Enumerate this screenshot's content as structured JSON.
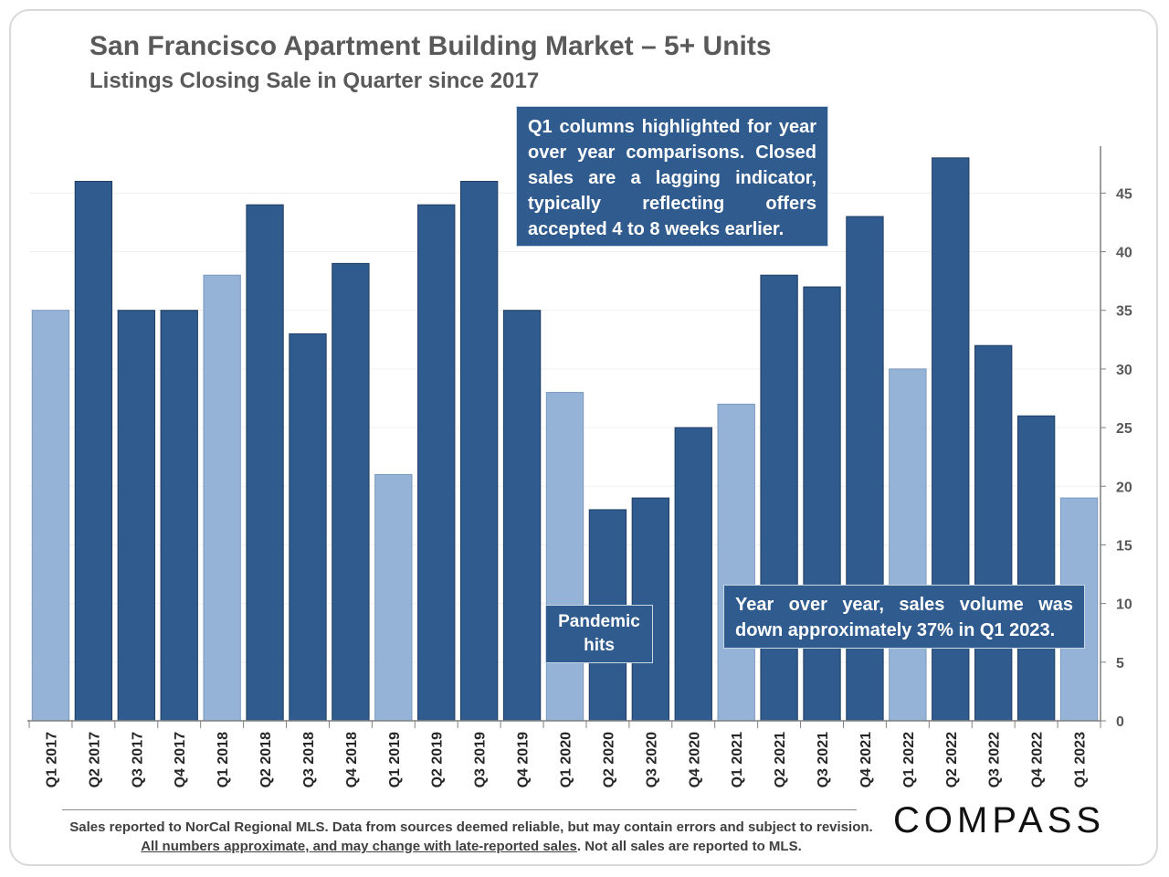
{
  "title": "San Francisco Apartment Building Market – 5+ Units",
  "subtitle": "Listings Closing Sale in Quarter since 2017",
  "callouts": {
    "q1_note": "Q1 columns highlighted for year over year comparisons. Closed sales are a lagging indicator, typically reflecting offers accepted 4 to 8 weeks earlier.",
    "yoy_note": "Year over year, sales volume was down approximately 37% in Q1 2023.",
    "pandemic_note": "Pandemic hits"
  },
  "footnote": {
    "part1": "Sales reported to NorCal Regional MLS. Data from sources deemed reliable, but may contain errors and subject to revision. ",
    "part2_underlined": "All numbers approximate, and may change with late-reported sales",
    "part3": ". Not all sales are reported to MLS."
  },
  "logo": "COMPASS",
  "colors": {
    "q1_bar": "#95b3d7",
    "other_bar": "#2f5b8e",
    "bar_outline": "#1f3d63",
    "axis": "#7f7f7f",
    "grid": "#f0f0f0",
    "text": "#595959"
  },
  "chart_data": {
    "type": "bar",
    "title": "San Francisco Apartment Building Market – 5+ Units",
    "subtitle": "Listings Closing Sale in Quarter since 2017",
    "categories": [
      "Q1 2017",
      "Q2 2017",
      "Q3 2017",
      "Q4 2017",
      "Q1 2018",
      "Q2 2018",
      "Q3 2018",
      "Q4 2018",
      "Q1 2019",
      "Q2 2019",
      "Q3 2019",
      "Q4 2019",
      "Q1 2020",
      "Q2 2020",
      "Q3 2020",
      "Q4 2020",
      "Q1 2021",
      "Q2 2021",
      "Q3 2021",
      "Q4 2021",
      "Q1 2022",
      "Q2 2022",
      "Q3 2022",
      "Q4 2022",
      "Q1 2023"
    ],
    "values": [
      35,
      46,
      35,
      35,
      38,
      44,
      33,
      39,
      21,
      44,
      46,
      35,
      28,
      18,
      19,
      25,
      27,
      38,
      37,
      43,
      30,
      48,
      32,
      26,
      19
    ],
    "highlight": [
      "Q1 2017",
      "Q1 2018",
      "Q1 2019",
      "Q1 2020",
      "Q1 2021",
      "Q1 2022",
      "Q1 2023"
    ],
    "ylim": [
      0,
      49
    ],
    "yticks": [
      0,
      5,
      10,
      15,
      20,
      25,
      30,
      35,
      40,
      45
    ],
    "y_axis_side": "right",
    "xlabel": "",
    "ylabel": "",
    "grid": true
  }
}
